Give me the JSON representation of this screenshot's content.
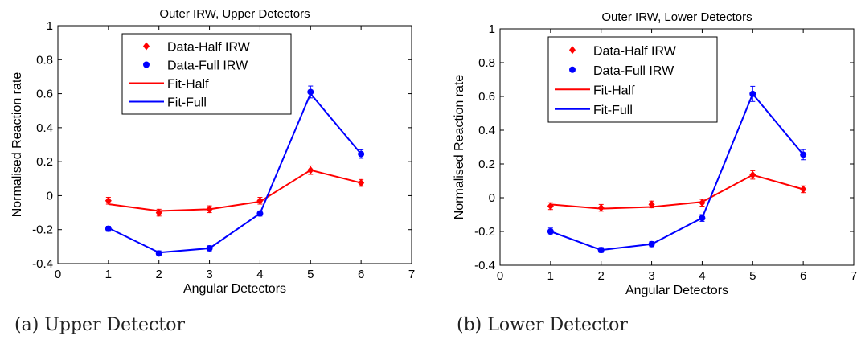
{
  "chart_data": [
    {
      "type": "line",
      "title": "Outer IRW, Upper Detectors",
      "xlabel": "Angular Detectors",
      "ylabel": "Normalised Reaction rate",
      "xlim": [
        0,
        7
      ],
      "ylim": [
        -0.4,
        1
      ],
      "xticks": [
        "0",
        "1",
        "2",
        "3",
        "4",
        "5",
        "6",
        "7"
      ],
      "yticks": [
        "-0.4",
        "-0.2",
        "0",
        "0.2",
        "0.4",
        "0.6",
        "0.8",
        "1"
      ],
      "grid": false,
      "legend_position": "top-center",
      "x": [
        1,
        2,
        3,
        4,
        5,
        6
      ],
      "series": [
        {
          "name": "Data-Half IRW",
          "kind": "points",
          "marker": "diamond",
          "color": "#ff0000",
          "values": [
            -0.03,
            -0.1,
            -0.08,
            -0.03,
            0.15,
            0.075
          ],
          "errors": [
            0.02,
            0.02,
            0.02,
            0.02,
            0.025,
            0.02
          ]
        },
        {
          "name": "Data-Full IRW",
          "kind": "points",
          "marker": "circle",
          "color": "#0000ff",
          "values": [
            -0.195,
            -0.34,
            -0.31,
            -0.105,
            0.61,
            0.245
          ],
          "errors": [
            0.015,
            0.015,
            0.015,
            0.015,
            0.035,
            0.025
          ]
        },
        {
          "name": "Fit-Half",
          "kind": "line",
          "color": "#ff0000",
          "values": [
            -0.05,
            -0.09,
            -0.08,
            -0.035,
            0.15,
            0.075
          ]
        },
        {
          "name": "Fit-Full",
          "kind": "line",
          "color": "#0000ff",
          "values": [
            -0.19,
            -0.335,
            -0.31,
            -0.105,
            0.6,
            0.245
          ]
        }
      ]
    },
    {
      "type": "line",
      "title": "Outer IRW, Lower Detectors",
      "xlabel": "Angular Detectors",
      "ylabel": "Normalised Reaction rate",
      "xlim": [
        0,
        7
      ],
      "ylim": [
        -0.4,
        1
      ],
      "xticks": [
        "0",
        "1",
        "2",
        "3",
        "4",
        "5",
        "6",
        "7"
      ],
      "yticks": [
        "-0.4",
        "-0.2",
        "0",
        "0.2",
        "0.4",
        "0.6",
        "0.8",
        "1"
      ],
      "grid": false,
      "legend_position": "top-center",
      "x": [
        1,
        2,
        3,
        4,
        5,
        6
      ],
      "series": [
        {
          "name": "Data-Half IRW",
          "kind": "points",
          "marker": "diamond",
          "color": "#ff0000",
          "values": [
            -0.05,
            -0.06,
            -0.04,
            -0.03,
            0.135,
            0.05
          ],
          "errors": [
            0.02,
            0.02,
            0.02,
            0.02,
            0.025,
            0.02
          ]
        },
        {
          "name": "Data-Full IRW",
          "kind": "points",
          "marker": "circle",
          "color": "#0000ff",
          "values": [
            -0.2,
            -0.31,
            -0.275,
            -0.12,
            0.615,
            0.255
          ],
          "errors": [
            0.02,
            0.015,
            0.015,
            0.02,
            0.045,
            0.03
          ]
        },
        {
          "name": "Fit-Half",
          "kind": "line",
          "color": "#ff0000",
          "values": [
            -0.04,
            -0.065,
            -0.055,
            -0.025,
            0.135,
            0.05
          ]
        },
        {
          "name": "Fit-Full",
          "kind": "line",
          "color": "#0000ff",
          "values": [
            -0.2,
            -0.31,
            -0.275,
            -0.12,
            0.615,
            0.255
          ]
        }
      ]
    }
  ],
  "captions": [
    "(a) Upper Detector",
    "(b) Lower Detector"
  ]
}
